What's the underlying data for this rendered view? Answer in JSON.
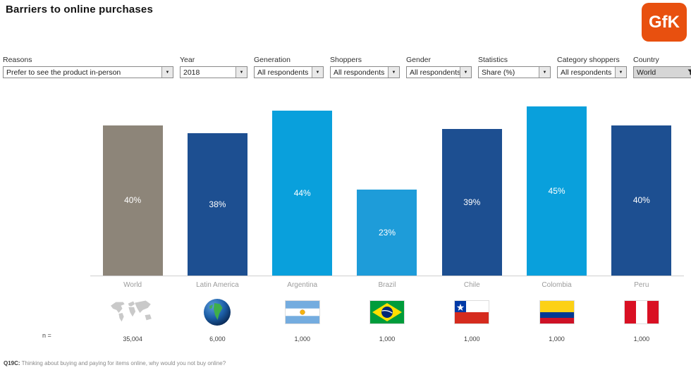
{
  "header": {
    "title": "Barriers to online purchases",
    "logo_text": "GfK"
  },
  "filters": [
    {
      "label": "Reasons",
      "value": "Prefer to see the product in-person"
    },
    {
      "label": "Year",
      "value": "2018"
    },
    {
      "label": "Generation",
      "value": "All respondents"
    },
    {
      "label": "Shoppers",
      "value": "All respondents"
    },
    {
      "label": "Gender",
      "value": "All respondents"
    },
    {
      "label": "Statistics",
      "value": "Share (%)"
    },
    {
      "label": "Category shoppers",
      "value": "All respondents"
    },
    {
      "label": "Country",
      "value": "World"
    }
  ],
  "chart_data": {
    "type": "bar",
    "title": "Barriers to online purchases",
    "categories": [
      "World",
      "Latin America",
      "Argentina",
      "Brazil",
      "Chile",
      "Colombia",
      "Peru"
    ],
    "values": [
      40,
      38,
      44,
      23,
      39,
      45,
      40
    ],
    "value_labels": [
      "40%",
      "38%",
      "44%",
      "23%",
      "39%",
      "45%",
      "40%"
    ],
    "colors": [
      "#8d8579",
      "#1d4f91",
      "#09a0dc",
      "#1e9cd9",
      "#1d4f91",
      "#09a0dc",
      "#1d4f91"
    ],
    "n_values": [
      "35,004",
      "6,000",
      "1,000",
      "1,000",
      "1,000",
      "1,000",
      "1,000"
    ],
    "flags": [
      "world-map-icon",
      "globe-latin-america-icon",
      "argentina-flag-icon",
      "brazil-flag-icon",
      "chile-flag-icon",
      "colombia-flag-icon",
      "peru-flag-icon"
    ],
    "ylim": [
      0,
      46
    ],
    "n_label": "n ="
  },
  "footnote": {
    "prefix": "Q19C:",
    "text": "Thinking about buying and paying for items online, why would you not buy online?"
  }
}
